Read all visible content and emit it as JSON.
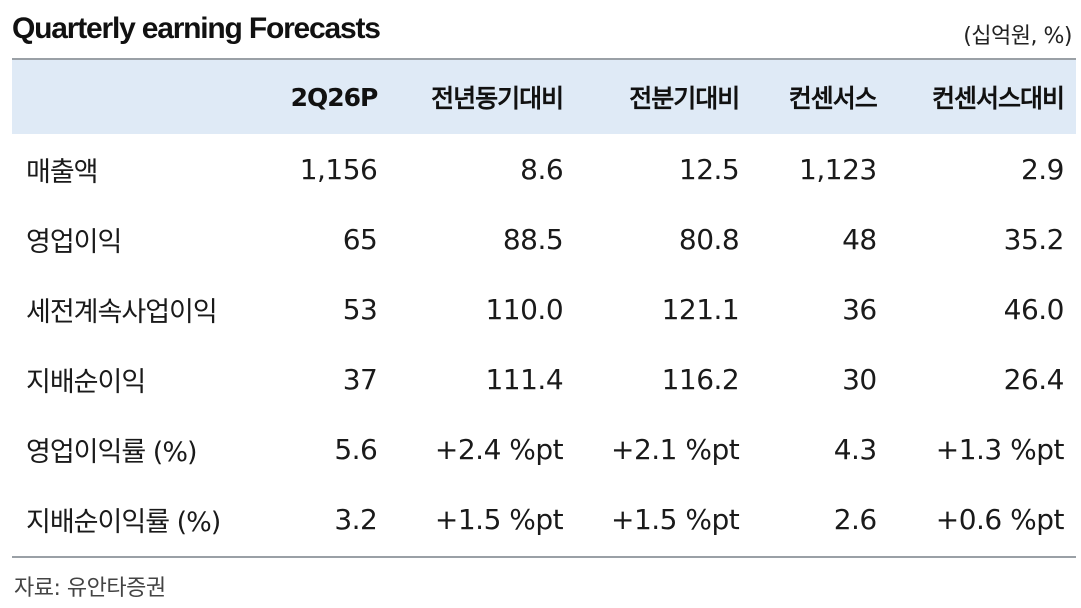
{
  "title": "Quarterly earning Forecasts",
  "unit": "(십억원, %)",
  "table": {
    "headers": [
      "",
      "2Q26P",
      "전년동기대비",
      "전분기대비",
      "컨센서스",
      "컨센서스대비"
    ],
    "rows": [
      [
        "매출액",
        "1,156",
        "8.6",
        "12.5",
        "1,123",
        "2.9"
      ],
      [
        "영업이익",
        "65",
        "88.5",
        "80.8",
        "48",
        "35.2"
      ],
      [
        "세전계속사업이익",
        "53",
        "110.0",
        "121.1",
        "36",
        "46.0"
      ],
      [
        "지배순이익",
        "37",
        "111.4",
        "116.2",
        "30",
        "26.4"
      ],
      [
        "영업이익률 (%)",
        "5.6",
        "+2.4 %pt",
        "+2.1 %pt",
        "4.3",
        "+1.3 %pt"
      ],
      [
        "지배순이익률 (%)",
        "3.2",
        "+1.5 %pt",
        "+1.5 %pt",
        "2.6",
        "+0.6 %pt"
      ]
    ]
  },
  "source": "자료: 유안타증권",
  "colors": {
    "header_bg": "#dfeaf6",
    "rule": "#9aa0a6"
  }
}
